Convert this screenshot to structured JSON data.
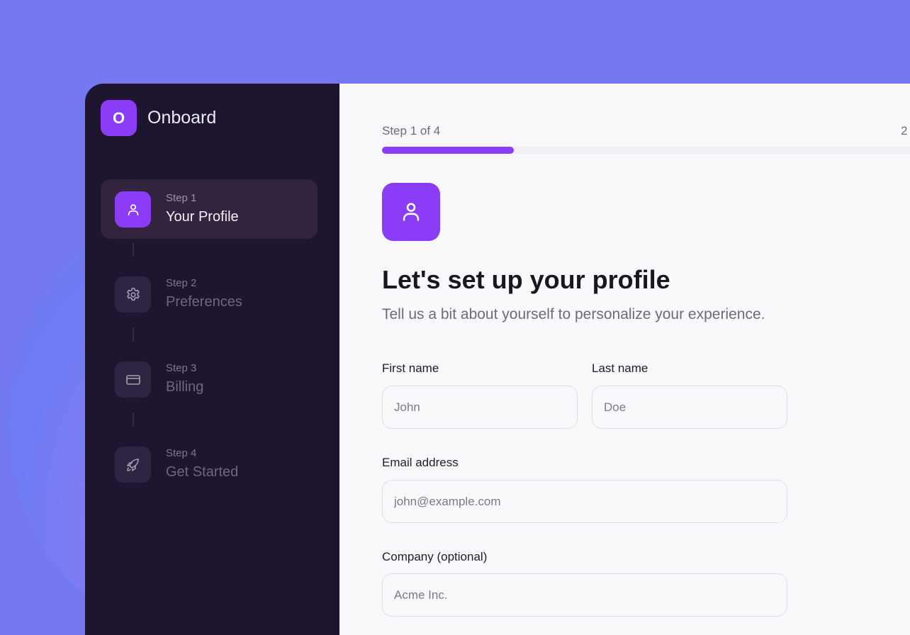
{
  "colors": {
    "accent": "#8b3cf7",
    "sidebar": "#1e1530",
    "background": "#7479ef"
  },
  "sidebar": {
    "logo_letter": "O",
    "brand": "Onboard",
    "steps": [
      {
        "label": "Step 1",
        "title": "Your Profile",
        "icon": "user-icon",
        "active": true
      },
      {
        "label": "Step 2",
        "title": "Preferences",
        "icon": "gear-icon",
        "active": false
      },
      {
        "label": "Step 3",
        "title": "Billing",
        "icon": "credit-card-icon",
        "active": false
      },
      {
        "label": "Step 4",
        "title": "Get Started",
        "icon": "rocket-icon",
        "active": false
      }
    ]
  },
  "main": {
    "progress_label": "Step 1 of 4",
    "progress_pct_visible": "2",
    "progress": 0.25,
    "header_icon": "user-icon",
    "title": "Let's set up your profile",
    "subtitle": "Tell us a bit about yourself to personalize your experience.",
    "fields": {
      "first_name": {
        "label": "First name",
        "placeholder": "John",
        "value": ""
      },
      "last_name": {
        "label": "Last name",
        "placeholder": "Doe",
        "value": ""
      },
      "email": {
        "label": "Email address",
        "placeholder": "john@example.com",
        "value": ""
      },
      "company": {
        "label": "Company (optional)",
        "placeholder": "Acme Inc.",
        "value": ""
      }
    }
  }
}
